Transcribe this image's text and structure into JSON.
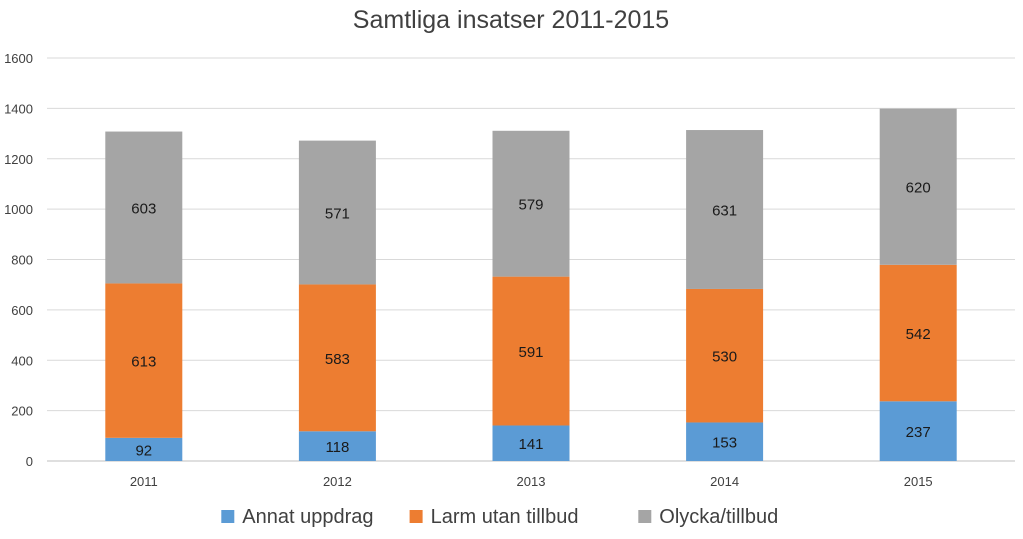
{
  "chart_data": {
    "type": "bar",
    "stacked": true,
    "title": "Samtliga insatser 2011-2015",
    "xlabel": "",
    "ylabel": "",
    "categories": [
      "2011",
      "2012",
      "2013",
      "2014",
      "2015"
    ],
    "ylim": [
      0,
      1600
    ],
    "yticks": [
      "0",
      "200",
      "400",
      "600",
      "800",
      "1000",
      "1200",
      "1400",
      "1600"
    ],
    "grid": true,
    "legend_position": "bottom",
    "series": [
      {
        "name": "Annat uppdrag",
        "color": "#5b9bd5",
        "values": [
          92,
          118,
          141,
          153,
          237
        ]
      },
      {
        "name": "Larm utan tillbud",
        "color": "#ed7d31",
        "values": [
          613,
          583,
          591,
          530,
          542
        ]
      },
      {
        "name": "Olycka/tillbud",
        "color": "#a5a5a5",
        "values": [
          603,
          571,
          579,
          631,
          620
        ]
      }
    ]
  }
}
